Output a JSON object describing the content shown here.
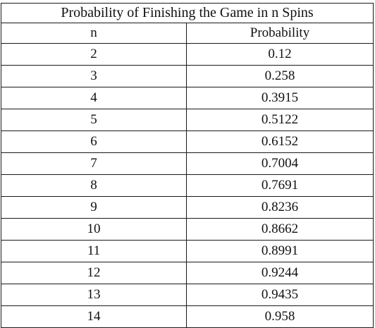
{
  "table": {
    "title": "Probability of Finishing the Game in n Spins",
    "headers": [
      "n",
      "Probability"
    ],
    "rows": [
      [
        "2",
        "0.12"
      ],
      [
        "3",
        "0.258"
      ],
      [
        "4",
        "0.3915"
      ],
      [
        "5",
        "0.5122"
      ],
      [
        "6",
        "0.6152"
      ],
      [
        "7",
        "0.7004"
      ],
      [
        "8",
        "0.7691"
      ],
      [
        "9",
        "0.8236"
      ],
      [
        "10",
        "0.8662"
      ],
      [
        "11",
        "0.8991"
      ],
      [
        "12",
        "0.9244"
      ],
      [
        "13",
        "0.9435"
      ],
      [
        "14",
        "0.958"
      ]
    ]
  }
}
